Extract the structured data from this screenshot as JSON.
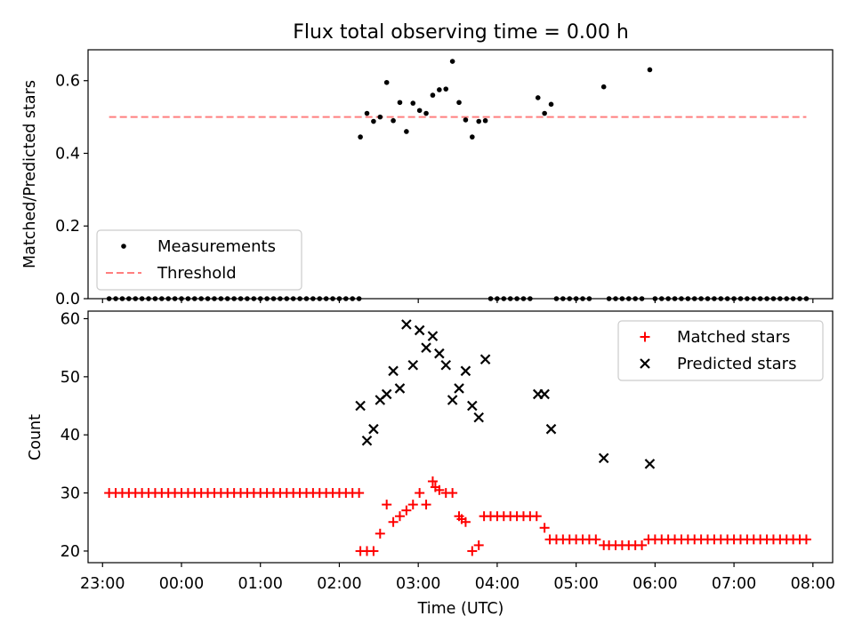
{
  "figure": {
    "title": "Flux total observing time = 0.00 h"
  },
  "colors": {
    "measurements": "#000000",
    "threshold": "#ff7f7f",
    "matched": "#ff0000",
    "predicted": "#000000"
  },
  "chart_data": [
    {
      "type": "scatter",
      "title": "Flux total observing time = 0.00 h",
      "xlabel": "",
      "ylabel": "Matched/Predicted stars",
      "xlim": [
        "22:49",
        "08:15"
      ],
      "ylim": [
        0,
        0.685
      ],
      "yticks": [
        "0.0",
        "0.2",
        "0.4",
        "0.6"
      ],
      "legend": {
        "position": "lower-left",
        "entries": [
          "Measurements",
          "Threshold"
        ]
      },
      "threshold": {
        "name": "Threshold",
        "value": 0.5,
        "x": [
          "23:05",
          "07:55"
        ],
        "style": "dashed"
      },
      "series": [
        {
          "name": "Measurements",
          "marker": "dot",
          "points": [
            [
              "23:05",
              0
            ],
            [
              "23:10",
              0
            ],
            [
              "23:15",
              0
            ],
            [
              "23:20",
              0
            ],
            [
              "23:25",
              0
            ],
            [
              "23:30",
              0
            ],
            [
              "23:35",
              0
            ],
            [
              "23:40",
              0
            ],
            [
              "23:45",
              0
            ],
            [
              "23:50",
              0
            ],
            [
              "23:55",
              0
            ],
            [
              "00:00",
              0
            ],
            [
              "00:05",
              0
            ],
            [
              "00:10",
              0
            ],
            [
              "00:15",
              0
            ],
            [
              "00:20",
              0
            ],
            [
              "00:25",
              0
            ],
            [
              "00:30",
              0
            ],
            [
              "00:35",
              0
            ],
            [
              "00:40",
              0
            ],
            [
              "00:45",
              0
            ],
            [
              "00:50",
              0
            ],
            [
              "00:55",
              0
            ],
            [
              "01:00",
              0
            ],
            [
              "01:05",
              0
            ],
            [
              "01:10",
              0
            ],
            [
              "01:15",
              0
            ],
            [
              "01:20",
              0
            ],
            [
              "01:25",
              0
            ],
            [
              "01:30",
              0
            ],
            [
              "01:35",
              0
            ],
            [
              "01:40",
              0
            ],
            [
              "01:45",
              0
            ],
            [
              "01:50",
              0
            ],
            [
              "01:55",
              0
            ],
            [
              "02:00",
              0
            ],
            [
              "02:05",
              0
            ],
            [
              "02:10",
              0
            ],
            [
              "02:15",
              0
            ],
            [
              "02:16",
              0.445
            ],
            [
              "02:21",
              0.51
            ],
            [
              "02:26",
              0.488
            ],
            [
              "02:31",
              0.5
            ],
            [
              "02:36",
              0.595
            ],
            [
              "02:41",
              0.49
            ],
            [
              "02:46",
              0.54
            ],
            [
              "02:51",
              0.46
            ],
            [
              "02:56",
              0.538
            ],
            [
              "03:01",
              0.518
            ],
            [
              "03:06",
              0.51
            ],
            [
              "03:11",
              0.56
            ],
            [
              "03:16",
              0.575
            ],
            [
              "03:21",
              0.577
            ],
            [
              "03:26",
              0.653
            ],
            [
              "03:31",
              0.54
            ],
            [
              "03:36",
              0.492
            ],
            [
              "03:41",
              0.445
            ],
            [
              "03:46",
              0.488
            ],
            [
              "03:51",
              0.49
            ],
            [
              "03:55",
              0
            ],
            [
              "04:00",
              0
            ],
            [
              "04:05",
              0
            ],
            [
              "04:10",
              0
            ],
            [
              "04:15",
              0
            ],
            [
              "04:20",
              0
            ],
            [
              "04:25",
              0
            ],
            [
              "04:31",
              0.553
            ],
            [
              "04:36",
              0.51
            ],
            [
              "04:41",
              0.535
            ],
            [
              "04:45",
              0
            ],
            [
              "04:50",
              0
            ],
            [
              "04:55",
              0
            ],
            [
              "05:00",
              0
            ],
            [
              "05:05",
              0
            ],
            [
              "05:10",
              0
            ],
            [
              "05:21",
              0.583
            ],
            [
              "05:25",
              0
            ],
            [
              "05:30",
              0
            ],
            [
              "05:35",
              0
            ],
            [
              "05:40",
              0
            ],
            [
              "05:45",
              0
            ],
            [
              "05:50",
              0
            ],
            [
              "05:56",
              0.63
            ],
            [
              "06:00",
              0
            ],
            [
              "06:05",
              0
            ],
            [
              "06:10",
              0
            ],
            [
              "06:15",
              0
            ],
            [
              "06:20",
              0
            ],
            [
              "06:25",
              0
            ],
            [
              "06:30",
              0
            ],
            [
              "06:35",
              0
            ],
            [
              "06:40",
              0
            ],
            [
              "06:45",
              0
            ],
            [
              "06:50",
              0
            ],
            [
              "06:55",
              0
            ],
            [
              "07:00",
              0
            ],
            [
              "07:05",
              0
            ],
            [
              "07:10",
              0
            ],
            [
              "07:15",
              0
            ],
            [
              "07:20",
              0
            ],
            [
              "07:25",
              0
            ],
            [
              "07:30",
              0
            ],
            [
              "07:35",
              0
            ],
            [
              "07:40",
              0
            ],
            [
              "07:45",
              0
            ],
            [
              "07:50",
              0
            ],
            [
              "07:55",
              0
            ]
          ]
        }
      ]
    },
    {
      "type": "scatter",
      "title": "",
      "xlabel": "Time (UTC)",
      "ylabel": "Count",
      "xlim": [
        "22:49",
        "08:15"
      ],
      "ylim": [
        18.0,
        61.3
      ],
      "xticks": [
        "23:00",
        "00:00",
        "01:00",
        "02:00",
        "03:00",
        "04:00",
        "05:00",
        "06:00",
        "07:00",
        "08:00"
      ],
      "yticks": [
        "20",
        "30",
        "40",
        "50",
        "60"
      ],
      "legend": {
        "position": "top-right",
        "entries": [
          "Matched stars",
          "Predicted stars"
        ]
      },
      "series": [
        {
          "name": "Matched stars",
          "marker": "plus",
          "points": [
            [
              "23:05",
              30
            ],
            [
              "23:10",
              30
            ],
            [
              "23:15",
              30
            ],
            [
              "23:20",
              30
            ],
            [
              "23:25",
              30
            ],
            [
              "23:30",
              30
            ],
            [
              "23:35",
              30
            ],
            [
              "23:40",
              30
            ],
            [
              "23:45",
              30
            ],
            [
              "23:50",
              30
            ],
            [
              "23:55",
              30
            ],
            [
              "00:00",
              30
            ],
            [
              "00:05",
              30
            ],
            [
              "00:10",
              30
            ],
            [
              "00:15",
              30
            ],
            [
              "00:20",
              30
            ],
            [
              "00:25",
              30
            ],
            [
              "00:30",
              30
            ],
            [
              "00:35",
              30
            ],
            [
              "00:40",
              30
            ],
            [
              "00:45",
              30
            ],
            [
              "00:50",
              30
            ],
            [
              "00:55",
              30
            ],
            [
              "01:00",
              30
            ],
            [
              "01:05",
              30
            ],
            [
              "01:10",
              30
            ],
            [
              "01:15",
              30
            ],
            [
              "01:20",
              30
            ],
            [
              "01:25",
              30
            ],
            [
              "01:30",
              30
            ],
            [
              "01:35",
              30
            ],
            [
              "01:40",
              30
            ],
            [
              "01:45",
              30
            ],
            [
              "01:50",
              30
            ],
            [
              "01:55",
              30
            ],
            [
              "02:00",
              30
            ],
            [
              "02:05",
              30
            ],
            [
              "02:10",
              30
            ],
            [
              "02:15",
              30
            ],
            [
              "02:16",
              20
            ],
            [
              "02:21",
              20
            ],
            [
              "02:26",
              20
            ],
            [
              "02:31",
              23
            ],
            [
              "02:36",
              28
            ],
            [
              "02:41",
              25
            ],
            [
              "02:46",
              26
            ],
            [
              "02:51",
              27
            ],
            [
              "02:56",
              28
            ],
            [
              "03:01",
              30
            ],
            [
              "03:06",
              28
            ],
            [
              "03:11",
              32
            ],
            [
              "03:13",
              31
            ],
            [
              "03:16",
              30.5
            ],
            [
              "03:21",
              30
            ],
            [
              "03:26",
              30
            ],
            [
              "03:31",
              26
            ],
            [
              "03:33",
              25.5
            ],
            [
              "03:36",
              25
            ],
            [
              "03:41",
              20
            ],
            [
              "03:46",
              21
            ],
            [
              "03:50",
              26
            ],
            [
              "03:55",
              26
            ],
            [
              "04:00",
              26
            ],
            [
              "04:05",
              26
            ],
            [
              "04:10",
              26
            ],
            [
              "04:15",
              26
            ],
            [
              "04:20",
              26
            ],
            [
              "04:25",
              26
            ],
            [
              "04:30",
              26
            ],
            [
              "04:36",
              24
            ],
            [
              "04:40",
              22
            ],
            [
              "04:45",
              22
            ],
            [
              "04:50",
              22
            ],
            [
              "04:55",
              22
            ],
            [
              "05:00",
              22
            ],
            [
              "05:05",
              22
            ],
            [
              "05:10",
              22
            ],
            [
              "05:15",
              22
            ],
            [
              "05:21",
              21
            ],
            [
              "05:25",
              21
            ],
            [
              "05:30",
              21
            ],
            [
              "05:35",
              21
            ],
            [
              "05:40",
              21
            ],
            [
              "05:45",
              21
            ],
            [
              "05:50",
              21
            ],
            [
              "05:55",
              22
            ],
            [
              "06:00",
              22
            ],
            [
              "06:05",
              22
            ],
            [
              "06:10",
              22
            ],
            [
              "06:15",
              22
            ],
            [
              "06:20",
              22
            ],
            [
              "06:25",
              22
            ],
            [
              "06:30",
              22
            ],
            [
              "06:35",
              22
            ],
            [
              "06:40",
              22
            ],
            [
              "06:45",
              22
            ],
            [
              "06:50",
              22
            ],
            [
              "06:55",
              22
            ],
            [
              "07:00",
              22
            ],
            [
              "07:05",
              22
            ],
            [
              "07:10",
              22
            ],
            [
              "07:15",
              22
            ],
            [
              "07:20",
              22
            ],
            [
              "07:25",
              22
            ],
            [
              "07:30",
              22
            ],
            [
              "07:35",
              22
            ],
            [
              "07:40",
              22
            ],
            [
              "07:45",
              22
            ],
            [
              "07:50",
              22
            ],
            [
              "07:55",
              22
            ]
          ]
        },
        {
          "name": "Predicted stars",
          "marker": "x",
          "points": [
            [
              "02:16",
              45
            ],
            [
              "02:21",
              39
            ],
            [
              "02:26",
              41
            ],
            [
              "02:31",
              46
            ],
            [
              "02:36",
              47
            ],
            [
              "02:41",
              51
            ],
            [
              "02:46",
              48
            ],
            [
              "02:51",
              59
            ],
            [
              "02:56",
              52
            ],
            [
              "03:01",
              58
            ],
            [
              "03:06",
              55
            ],
            [
              "03:11",
              57
            ],
            [
              "03:16",
              54
            ],
            [
              "03:21",
              52
            ],
            [
              "03:26",
              46
            ],
            [
              "03:31",
              48
            ],
            [
              "03:36",
              51
            ],
            [
              "03:41",
              45
            ],
            [
              "03:46",
              43
            ],
            [
              "03:51",
              53
            ],
            [
              "04:31",
              47
            ],
            [
              "04:36",
              47
            ],
            [
              "04:41",
              41
            ],
            [
              "05:21",
              36
            ],
            [
              "05:56",
              35
            ]
          ]
        }
      ]
    }
  ]
}
